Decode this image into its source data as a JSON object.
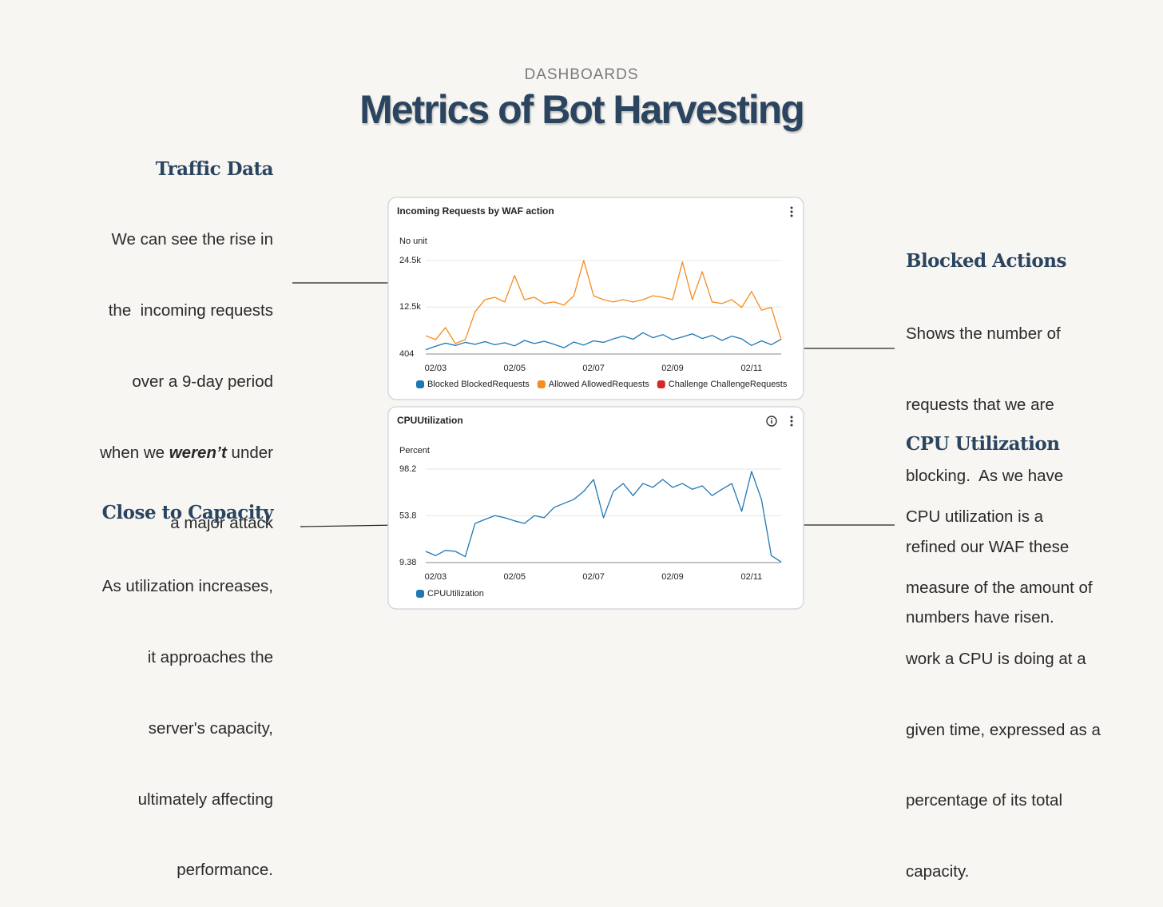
{
  "header": {
    "kicker": "DASHBOARDS",
    "title": "Metrics of Bot Harvesting"
  },
  "sections": [
    {
      "title": "Traffic Data",
      "lines": [
        "We can see the rise in",
        "the  incoming requests",
        "over a 9-day period",
        [
          "when we ",
          "weren’t",
          " under"
        ],
        "a major attack"
      ]
    },
    {
      "title": "Blocked Actions",
      "lines": [
        "Shows the number of",
        "requests that we are",
        "blocking.  As we have",
        "refined our WAF these",
        "numbers have risen."
      ]
    },
    {
      "title": "CPU Utilization",
      "lines": [
        "CPU utilization is a",
        "measure of the amount of",
        "work a CPU is doing at a",
        "given time, expressed as a",
        "percentage of its total",
        "capacity."
      ]
    },
    {
      "title": "Close to Capacity",
      "lines": [
        "As utilization increases,",
        "it approaches the",
        "server's capacity,",
        "ultimately affecting",
        "performance."
      ]
    }
  ],
  "chart_data": [
    {
      "type": "line",
      "title": "Incoming Requests by WAF action",
      "y_label": "No unit",
      "categories": [
        null,
        "02/03",
        null,
        null,
        null,
        null,
        null,
        null,
        null,
        "02/05",
        null,
        null,
        null,
        null,
        null,
        null,
        null,
        "02/07",
        null,
        null,
        null,
        null,
        null,
        null,
        null,
        "02/09",
        null,
        null,
        null,
        null,
        null,
        null,
        null,
        "02/11",
        null,
        null,
        null
      ],
      "ylim": [
        404,
        25500
      ],
      "yticks": [
        404,
        {
          "value": 12500,
          "label": "12.5k"
        },
        {
          "value": 24500,
          "label": "24.5k"
        }
      ],
      "grid": true,
      "series": [
        {
          "name": "Blocked BlockedRequests",
          "color": "#1f77b4",
          "values": [
            1500,
            2400,
            3200,
            2600,
            3400,
            2900,
            3600,
            2800,
            3300,
            2500,
            3900,
            3100,
            3700,
            2900,
            2000,
            3500,
            2700,
            3800,
            3400,
            4300,
            5000,
            4200,
            5900,
            4600,
            5400,
            4100,
            4800,
            5600,
            4400,
            5200,
            3900,
            5000,
            4300,
            2600,
            3800,
            2800,
            4200
          ]
        },
        {
          "name": "Allowed AllowedRequests",
          "color": "#f58c1e",
          "values": [
            5100,
            4100,
            7200,
            3100,
            4100,
            11300,
            14400,
            15000,
            13800,
            20600,
            14400,
            15000,
            13400,
            13800,
            13000,
            15400,
            24500,
            15400,
            14400,
            13800,
            14400,
            13800,
            14400,
            15400,
            15000,
            14400,
            24100,
            14400,
            21600,
            13800,
            13400,
            14400,
            12400,
            16500,
            11700,
            12400,
            4100
          ]
        },
        {
          "name": "Challenge ChallengeRequests",
          "color": "#d62728",
          "values": [
            null,
            null,
            null,
            null,
            null,
            null,
            null,
            null,
            null,
            null,
            null,
            null,
            null,
            null,
            null,
            null,
            null,
            null,
            null,
            null,
            null,
            null,
            null,
            null,
            null,
            null,
            null,
            null,
            null,
            null,
            null,
            null,
            null,
            null,
            null,
            null,
            null
          ]
        }
      ]
    },
    {
      "type": "line",
      "title": "CPUUtilization",
      "y_label": "Percent",
      "categories": [
        null,
        "02/03",
        null,
        null,
        null,
        null,
        null,
        null,
        null,
        "02/05",
        null,
        null,
        null,
        null,
        null,
        null,
        null,
        "02/07",
        null,
        null,
        null,
        null,
        null,
        null,
        null,
        "02/09",
        null,
        null,
        null,
        null,
        null,
        null,
        null,
        "02/11",
        null,
        null,
        null
      ],
      "ylim": [
        9.38,
        102
      ],
      "yticks": [
        9.38,
        53.8,
        98.2
      ],
      "grid": true,
      "series": [
        {
          "name": "CPUUtilization",
          "color": "#1f77b4",
          "values": [
            20,
            16,
            21,
            20,
            15,
            46.6,
            50.4,
            54,
            52,
            49,
            46.6,
            54,
            52,
            61.8,
            65.6,
            69.4,
            77,
            88.3,
            52,
            77,
            84.5,
            73,
            84.5,
            80.8,
            88.3,
            80.8,
            84.5,
            79,
            82.3,
            73,
            79,
            84.5,
            58,
            96,
            69.4,
            16,
            10
          ]
        }
      ]
    }
  ]
}
